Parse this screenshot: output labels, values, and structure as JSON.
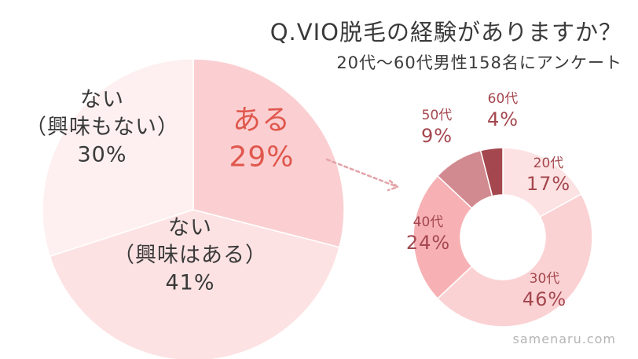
{
  "header": {
    "title": "Q.VIO脱毛の経験がありますか？",
    "subtitle": "20代〜60代男性158名にアンケート"
  },
  "watermark": "samenaru.com",
  "colors": {
    "text_dark": "#3a3a3a",
    "accent_red": "#e0574d",
    "donut_label": "#a4474e",
    "arrow": "#e3a3a8"
  },
  "chart_data": [
    {
      "type": "pie",
      "categories": [
        "ある",
        "ない（興味はある）",
        "ない（興味もない）"
      ],
      "label_lines": [
        [
          "ある",
          "29%"
        ],
        [
          "ない",
          "（興味はある）",
          "41%"
        ],
        [
          "ない",
          "（興味もない）",
          "30%"
        ]
      ],
      "values": [
        29,
        41,
        30
      ],
      "unit": "%",
      "colors": [
        "#fbcfd1",
        "#fde2e3",
        "#fef0f0"
      ]
    },
    {
      "type": "pie",
      "subtype": "donut",
      "categories": [
        "20代",
        "30代",
        "40代",
        "50代",
        "60代"
      ],
      "values": [
        17,
        46,
        24,
        9,
        4
      ],
      "value_labels": [
        "17%",
        "46%",
        "24%",
        "9%",
        "4%"
      ],
      "unit": "%",
      "colors": [
        "#fde2e3",
        "#fbd2d4",
        "#f7b1b4",
        "#d18a8f",
        "#a4474e"
      ]
    }
  ]
}
